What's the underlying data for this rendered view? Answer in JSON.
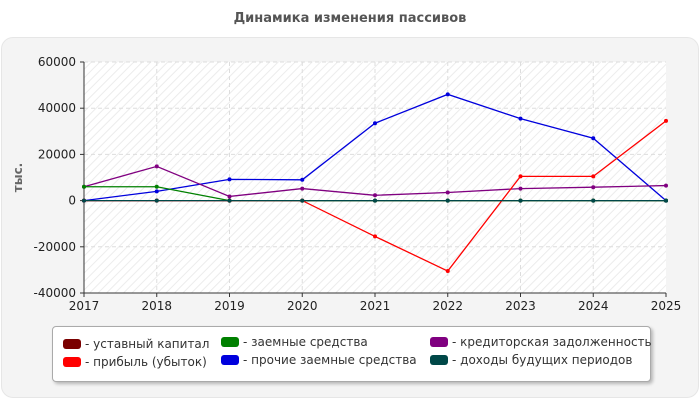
{
  "title": "Динамика изменения пассивов",
  "chart_data": {
    "type": "line",
    "title": "Динамика изменения пассивов",
    "xlabel": "",
    "ylabel": "тыс.",
    "x": [
      "2017",
      "2018",
      "2019",
      "2020",
      "2021",
      "2022",
      "2023",
      "2024",
      "2025"
    ],
    "yticks": [
      "-40000",
      "-20000",
      "0",
      "20000",
      "40000",
      "60000"
    ],
    "ylim": [
      -40000,
      60000
    ],
    "grid": true,
    "legend_position": "bottom",
    "series": [
      {
        "name": "- уставный капитал",
        "color": "#7a0000",
        "values": [
          0,
          0,
          0,
          0,
          0,
          0,
          0,
          0,
          0
        ]
      },
      {
        "name": "- прибыль (убыток)",
        "color": "#ff0000",
        "values": [
          0,
          0,
          0,
          0,
          -15500,
          -30500,
          10500,
          10500,
          34500
        ]
      },
      {
        "name": "- заемные средства",
        "color": "#008000",
        "values": [
          6000,
          6000,
          0,
          0,
          0,
          0,
          0,
          0,
          0
        ]
      },
      {
        "name": "- прочие заемные средства",
        "color": "#0000dd",
        "values": [
          0,
          4000,
          9200,
          9000,
          33500,
          46000,
          35500,
          27000,
          0
        ]
      },
      {
        "name": "- кредиторская задолженность",
        "color": "#800080",
        "values": [
          6000,
          14800,
          1800,
          5200,
          2300,
          3500,
          5200,
          5800,
          6500
        ]
      },
      {
        "name": "- доходы будущих периодов",
        "color": "#004848",
        "values": [
          0,
          0,
          0,
          0,
          0,
          0,
          0,
          0,
          0
        ]
      }
    ]
  }
}
